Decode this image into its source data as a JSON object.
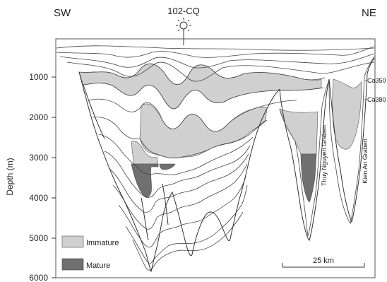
{
  "orientation": {
    "left": "SW",
    "right": "NE"
  },
  "well": {
    "label": "102-CQ",
    "icon": "well-symbol-icon"
  },
  "depth_axis": {
    "label": "Depth (m)",
    "ticks": [
      "1000",
      "2000",
      "3000",
      "4000",
      "5000",
      "6000"
    ]
  },
  "horizon_labels": {
    "upper": "Ca350",
    "lower": "Ca380"
  },
  "grabens": {
    "thuy_nguyen": "Thuy Nguyen Graben",
    "kien_an": "Kien An Graben"
  },
  "legend": {
    "items": [
      {
        "label": "Immature",
        "color": "#d0d0d0"
      },
      {
        "label": "Mature",
        "color": "#707070"
      }
    ]
  },
  "scale_bar": {
    "label": "25 km"
  },
  "colors": {
    "line": "#333333",
    "immature": "#d0d0d0",
    "mature": "#707070"
  }
}
